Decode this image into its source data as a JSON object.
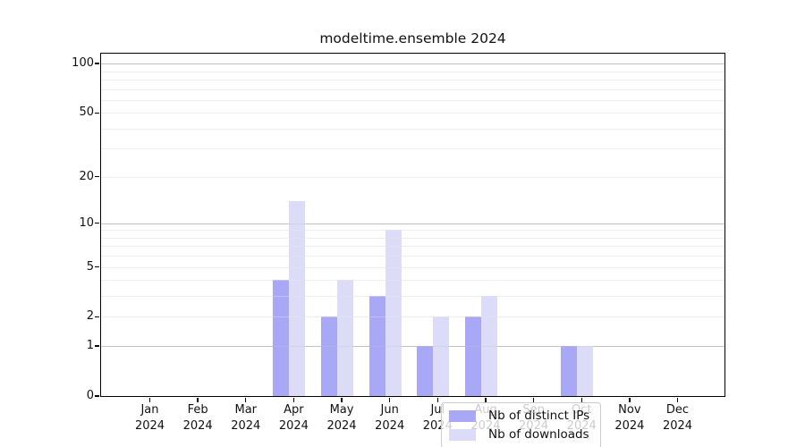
{
  "title": "modeltime.ensemble 2024",
  "chart_data": {
    "type": "bar",
    "title": "modeltime.ensemble 2024",
    "categories": [
      {
        "month": "Jan",
        "year": "2024"
      },
      {
        "month": "Feb",
        "year": "2024"
      },
      {
        "month": "Mar",
        "year": "2024"
      },
      {
        "month": "Apr",
        "year": "2024"
      },
      {
        "month": "May",
        "year": "2024"
      },
      {
        "month": "Jun",
        "year": "2024"
      },
      {
        "month": "Jul",
        "year": "2024"
      },
      {
        "month": "Aug",
        "year": "2024"
      },
      {
        "month": "Sep",
        "year": "2024"
      },
      {
        "month": "Oct",
        "year": "2024"
      },
      {
        "month": "Nov",
        "year": "2024"
      },
      {
        "month": "Dec",
        "year": "2024"
      }
    ],
    "series": [
      {
        "name": "Nb of distinct IPs",
        "color": "#a8a8f6",
        "values": [
          0,
          0,
          0,
          4,
          2,
          3,
          1,
          2,
          0,
          1,
          0,
          0
        ]
      },
      {
        "name": "Nb of downloads",
        "color": "#dcdcf9",
        "values": [
          0,
          0,
          0,
          14,
          4,
          9,
          2,
          3,
          0,
          1,
          0,
          0
        ]
      }
    ],
    "xlabel": "",
    "ylabel": "",
    "yscale": "log1p",
    "ylim": [
      0,
      115
    ],
    "ytick_labels": [
      0,
      1,
      2,
      5,
      10,
      20,
      50,
      100
    ],
    "gridlines": {
      "major": [
        1,
        10,
        100
      ],
      "minor": [
        2,
        3,
        4,
        5,
        6,
        7,
        8,
        9,
        20,
        30,
        40,
        50,
        60,
        70,
        80,
        90
      ]
    },
    "grid": true,
    "legend_position": "inside-bottom-center"
  },
  "colors": {
    "grid_major": "#c2c2c2",
    "grid_minor": "#ededed",
    "spine": "#000000",
    "legend_border": "#cbcbcb"
  }
}
